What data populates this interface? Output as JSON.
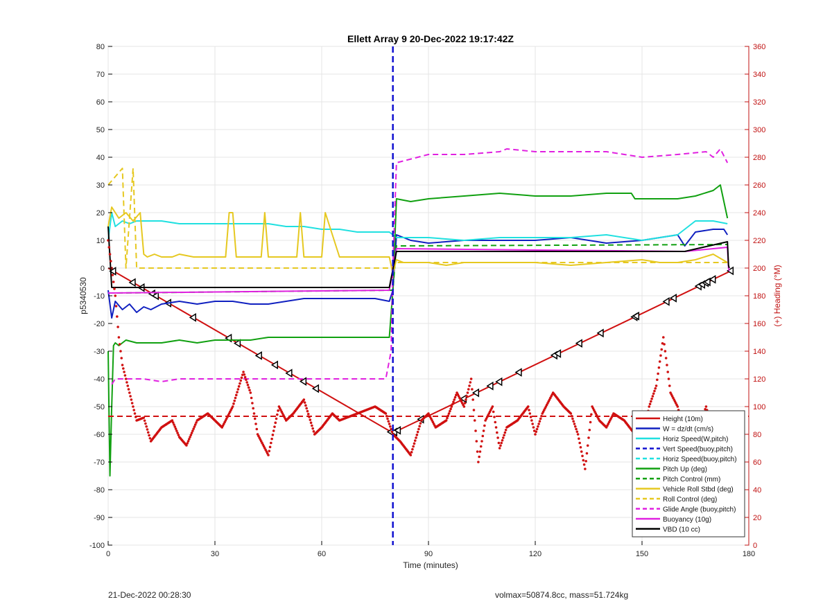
{
  "footer": {
    "left": "21-Dec-2022 00:28:30",
    "right": "volmax=50874.8cc, mass=51.724kg"
  },
  "chart_data": {
    "type": "line",
    "title": "Ellett Array 9 20-Dec-2022 19:17:42Z",
    "xlabel": "Time (minutes)",
    "ylabel": "p5340530",
    "ylabel_right": "(+) Heading (°M)",
    "xlim": [
      0,
      180
    ],
    "ylim": [
      -100,
      80
    ],
    "ylim_right": [
      0,
      360
    ],
    "xticks": [
      0,
      30,
      60,
      90,
      120,
      150,
      180
    ],
    "yticks": [
      -100,
      -90,
      -80,
      -70,
      -60,
      -50,
      -40,
      -30,
      -20,
      -10,
      0,
      10,
      20,
      30,
      40,
      50,
      60,
      70,
      80
    ],
    "yticks_right": [
      0,
      20,
      40,
      60,
      80,
      100,
      120,
      140,
      160,
      180,
      200,
      220,
      240,
      260,
      280,
      300,
      320,
      340,
      360
    ],
    "grid": true,
    "legend_position": "bottom-right",
    "vertical_line": {
      "x": 80,
      "color": "#1010d0"
    },
    "series": [
      {
        "name": "Height (10m)",
        "color": "#d01010",
        "style": "solid",
        "width": 2,
        "x": [
          0,
          80,
          175
        ],
        "y": [
          0,
          -59.5,
          -1
        ],
        "markers_x": [
          1.5,
          7,
          9.5,
          12.5,
          13.5,
          17,
          24,
          34,
          36.5,
          42.5,
          47,
          51,
          55,
          58.5,
          79.5,
          80.5,
          81.5,
          88,
          100,
          103.5,
          107.5,
          110,
          115.5,
          125.5,
          126.5,
          132.5,
          138.5,
          148,
          148.5,
          157,
          159,
          166,
          167,
          168,
          168.5,
          170,
          175
        ]
      },
      {
        "name": "W = dz/dt (cm/s)",
        "color": "#1020c0",
        "style": "solid",
        "width": 2,
        "x": [
          0,
          1,
          2,
          4,
          6,
          8,
          10,
          12,
          15,
          20,
          25,
          30,
          35,
          40,
          45,
          50,
          55,
          60,
          65,
          70,
          75,
          79,
          80,
          81,
          85,
          90,
          100,
          110,
          120,
          130,
          140,
          150,
          160,
          162,
          165,
          170,
          173,
          174
        ],
        "y": [
          -8,
          -18,
          -12,
          -15,
          -13,
          -16,
          -14,
          -15,
          -13,
          -12,
          -13,
          -12,
          -12,
          -13,
          -13,
          -12,
          -11,
          -11,
          -11,
          -11,
          -11,
          -12,
          -8,
          12,
          10,
          9,
          10,
          10,
          10,
          11,
          9,
          10,
          12,
          8,
          13,
          14,
          14,
          12
        ]
      },
      {
        "name": "Horiz Speed(W,pitch)",
        "color": "#20e0e0",
        "style": "solid",
        "width": 2,
        "x": [
          0,
          1,
          2,
          4,
          6,
          8,
          10,
          15,
          20,
          25,
          30,
          35,
          40,
          45,
          50,
          55,
          60,
          65,
          70,
          75,
          79,
          80,
          81,
          85,
          90,
          100,
          110,
          120,
          130,
          140,
          150,
          160,
          165,
          170,
          174
        ],
        "y": [
          10,
          20,
          15,
          17,
          16,
          17,
          17,
          17,
          16,
          16,
          16,
          16,
          16,
          16,
          15,
          15,
          14,
          14,
          13,
          13,
          13,
          12,
          11,
          11,
          11,
          10,
          11,
          11,
          11,
          12,
          10,
          12,
          17,
          17,
          16
        ]
      },
      {
        "name": "Vert Speed(buoy,pitch)",
        "color": "#1010d0",
        "style": "dash",
        "width": 2,
        "x": [],
        "y": []
      },
      {
        "name": "Horiz Speed(buoy,pitch)",
        "color": "#20e0e0",
        "style": "dash",
        "width": 2,
        "x": [],
        "y": []
      },
      {
        "name": "Pitch Up (deg)",
        "color": "#10a010",
        "style": "solid",
        "width": 2,
        "x": [
          0,
          0.5,
          1,
          1.5,
          2,
          3,
          5,
          8,
          10,
          15,
          20,
          25,
          30,
          35,
          40,
          45,
          50,
          55,
          60,
          65,
          70,
          75,
          79,
          80,
          81,
          85,
          90,
          100,
          110,
          120,
          130,
          140,
          147,
          148,
          150,
          160,
          165,
          170,
          172,
          174
        ],
        "y": [
          -30,
          -75,
          -50,
          -28,
          -27,
          -28,
          -26,
          -27,
          -27,
          -27,
          -26,
          -27,
          -26,
          -26,
          -26,
          -25,
          -25,
          -25,
          -25,
          -25,
          -25,
          -25,
          -25,
          -8,
          25,
          24,
          25,
          26,
          27,
          26,
          26,
          27,
          27,
          25,
          25,
          25,
          26,
          28,
          30,
          18
        ]
      },
      {
        "name": "Pitch Control (mm)",
        "color": "#10a010",
        "style": "dash",
        "width": 2,
        "x": [
          0,
          2,
          80,
          81,
          174
        ],
        "y": [
          -9,
          -9,
          -8,
          8,
          8.5
        ]
      },
      {
        "name": "Vehicle Roll Stbd (deg)",
        "color": "#e6c820",
        "style": "solid",
        "width": 2,
        "x": [
          0,
          1,
          3,
          5,
          7,
          9,
          10,
          11,
          13,
          15,
          18,
          20,
          24,
          25,
          30,
          33,
          34,
          35,
          36,
          40,
          43,
          44,
          45,
          50,
          53,
          54,
          55,
          58,
          60,
          61,
          65,
          70,
          75,
          79,
          80,
          81,
          83,
          85,
          90,
          95,
          100,
          110,
          120,
          130,
          140,
          150,
          155,
          160,
          165,
          170,
          174
        ],
        "y": [
          15,
          22,
          18,
          20,
          17,
          20,
          5,
          4,
          5,
          4,
          4,
          5,
          4,
          4,
          4,
          4,
          20,
          20,
          4,
          4,
          4,
          20,
          4,
          4,
          4,
          20,
          4,
          4,
          4,
          20,
          4,
          4,
          4,
          4,
          -2,
          3,
          2,
          2,
          2,
          1,
          2,
          2,
          2,
          1,
          2,
          3,
          2,
          2,
          3,
          5,
          2
        ]
      },
      {
        "name": "Roll Control (deg)",
        "color": "#e6c820",
        "style": "dash",
        "width": 2,
        "x": [
          0,
          4,
          5,
          7,
          8,
          10,
          20,
          30,
          40,
          50,
          60,
          70,
          79,
          80,
          81,
          90,
          100,
          110,
          120,
          130,
          140,
          150,
          160,
          170,
          174
        ],
        "y": [
          30,
          36,
          0,
          36,
          0,
          0,
          0,
          0,
          0,
          0,
          0,
          0,
          0,
          0,
          2,
          2,
          2,
          2,
          2,
          2,
          2,
          2,
          2,
          2,
          2
        ]
      },
      {
        "name": "Glide Angle (buoy,pitch)",
        "color": "#e020e0",
        "style": "dash",
        "width": 2,
        "x": [
          1,
          2,
          5,
          10,
          15,
          20,
          30,
          40,
          50,
          60,
          70,
          78,
          79.5,
          80,
          81,
          90,
          100,
          110,
          112,
          120,
          130,
          140,
          150,
          160,
          168,
          170,
          172,
          174
        ],
        "y": [
          -42,
          -40,
          -40,
          -40,
          -41,
          -40,
          -40,
          -40,
          -40,
          -40,
          -40,
          -40,
          -30,
          0,
          38,
          41,
          41,
          42,
          43,
          42,
          42,
          42,
          40,
          41,
          42,
          40,
          43,
          38
        ]
      },
      {
        "name": "Buoyancy (10g)",
        "color": "#e020e0",
        "style": "solid",
        "width": 2,
        "x": [
          0,
          1,
          79,
          81,
          162,
          174,
          174.3,
          174.5
        ],
        "y": [
          -9,
          -9,
          -8,
          7,
          6,
          7.5,
          0,
          -1
        ]
      },
      {
        "name": "VBD (10 cc)",
        "color": "#000000",
        "style": "solid",
        "width": 2,
        "x": [
          0,
          1,
          79,
          81,
          162,
          174,
          174.3,
          174.5
        ],
        "y": [
          15,
          -7,
          -7,
          6,
          6,
          9.5,
          1,
          0
        ]
      },
      {
        "name": "Heading",
        "axis": "right",
        "color": "#d01010",
        "style": "dot",
        "mean": 93,
        "mean_style": "dash",
        "x": [
          0,
          1,
          2,
          3,
          4,
          6,
          8,
          10,
          12,
          15,
          18,
          20,
          22,
          25,
          28,
          32,
          35,
          38,
          40,
          42,
          45,
          48,
          50,
          52,
          55,
          58,
          60,
          63,
          65,
          70,
          75,
          78,
          80,
          82,
          85,
          88,
          90,
          92,
          95,
          98,
          100,
          102,
          104,
          106,
          108,
          110,
          112,
          115,
          118,
          120,
          122,
          125,
          128,
          130,
          132,
          134,
          136,
          138,
          140,
          142,
          145,
          148,
          150,
          152,
          154,
          156,
          158,
          160,
          162,
          164,
          166,
          168,
          170,
          172,
          174
        ],
        "y": [
          220,
          200,
          180,
          150,
          130,
          110,
          90,
          92,
          75,
          85,
          90,
          78,
          72,
          90,
          95,
          85,
          100,
          125,
          110,
          80,
          65,
          100,
          90,
          95,
          105,
          80,
          85,
          95,
          90,
          95,
          100,
          95,
          80,
          75,
          65,
          90,
          95,
          85,
          90,
          110,
          100,
          120,
          60,
          90,
          100,
          70,
          85,
          90,
          100,
          80,
          95,
          110,
          100,
          95,
          80,
          55,
          100,
          90,
          85,
          95,
          90,
          80,
          75,
          100,
          115,
          150,
          110,
          100,
          80,
          95,
          85,
          100,
          80,
          95,
          90
        ]
      }
    ]
  }
}
